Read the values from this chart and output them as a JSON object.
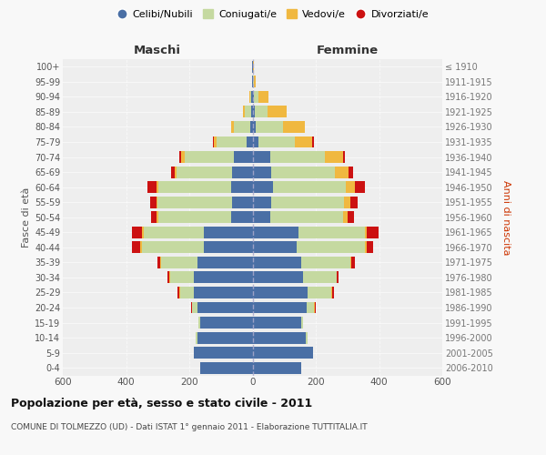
{
  "age_groups": [
    "0-4",
    "5-9",
    "10-14",
    "15-19",
    "20-24",
    "25-29",
    "30-34",
    "35-39",
    "40-44",
    "45-49",
    "50-54",
    "55-59",
    "60-64",
    "65-69",
    "70-74",
    "75-79",
    "80-84",
    "85-89",
    "90-94",
    "95-99",
    "100+"
  ],
  "birth_years": [
    "2006-2010",
    "2001-2005",
    "1996-2000",
    "1991-1995",
    "1986-1990",
    "1981-1985",
    "1976-1980",
    "1971-1975",
    "1966-1970",
    "1961-1965",
    "1956-1960",
    "1951-1955",
    "1946-1950",
    "1941-1945",
    "1936-1940",
    "1931-1935",
    "1926-1930",
    "1921-1925",
    "1916-1920",
    "1911-1915",
    "≤ 1910"
  ],
  "male": {
    "celibe": [
      165,
      185,
      175,
      165,
      175,
      185,
      185,
      175,
      155,
      155,
      68,
      65,
      68,
      65,
      60,
      18,
      8,
      5,
      3,
      2,
      2
    ],
    "coniugato": [
      0,
      0,
      5,
      5,
      15,
      45,
      75,
      115,
      195,
      190,
      230,
      235,
      230,
      175,
      155,
      95,
      50,
      20,
      5,
      0,
      0
    ],
    "vedovo": [
      0,
      0,
      0,
      0,
      2,
      2,
      3,
      3,
      5,
      5,
      5,
      5,
      5,
      5,
      10,
      8,
      10,
      5,
      2,
      0,
      0
    ],
    "divorziato": [
      0,
      0,
      0,
      0,
      3,
      5,
      5,
      8,
      25,
      30,
      18,
      18,
      28,
      12,
      8,
      5,
      0,
      0,
      0,
      0,
      0
    ]
  },
  "female": {
    "nubile": [
      155,
      190,
      168,
      155,
      170,
      175,
      160,
      155,
      140,
      145,
      55,
      58,
      65,
      60,
      55,
      18,
      10,
      8,
      5,
      2,
      2
    ],
    "coniugata": [
      0,
      0,
      5,
      5,
      25,
      75,
      105,
      155,
      215,
      210,
      230,
      230,
      230,
      200,
      175,
      115,
      85,
      40,
      15,
      2,
      0
    ],
    "vedova": [
      0,
      0,
      0,
      0,
      2,
      2,
      2,
      3,
      5,
      5,
      15,
      20,
      30,
      45,
      55,
      55,
      70,
      60,
      30,
      5,
      2
    ],
    "divorziata": [
      0,
      0,
      0,
      0,
      3,
      5,
      5,
      10,
      20,
      38,
      20,
      25,
      30,
      12,
      8,
      5,
      0,
      0,
      0,
      0,
      0
    ]
  },
  "colors": {
    "celibe": "#4a6fa5",
    "coniugato": "#c5d9a0",
    "vedovo": "#f0b840",
    "divorziato": "#cc1111"
  },
  "legend_labels": [
    "Celibi/Nubili",
    "Coniugati/e",
    "Vedovi/e",
    "Divorziati/e"
  ],
  "title": "Popolazione per età, sesso e stato civile - 2011",
  "subtitle": "COMUNE DI TOLMEZZO (UD) - Dati ISTAT 1° gennaio 2011 - Elaborazione TUTTITALIA.IT",
  "ylabel_left": "Fasce di età",
  "ylabel_right": "Anni di nascita",
  "xlabel_maschi": "Maschi",
  "xlabel_femmine": "Femmine",
  "xlim": 600,
  "fig_bg": "#f8f8f8",
  "plot_bg": "#eeeeee"
}
